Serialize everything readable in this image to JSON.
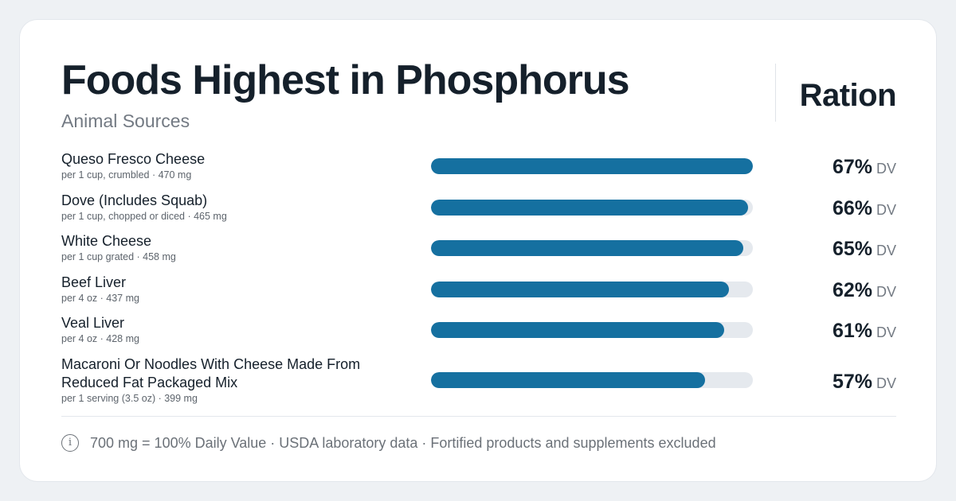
{
  "header": {
    "title": "Foods Highest in Phosphorus",
    "subtitle": "Animal Sources",
    "brand": "Ration"
  },
  "footer": {
    "icon": "info-icon",
    "text": "700 mg = 100% Daily Value · USDA laboratory data · Fortified products and supplements excluded"
  },
  "colors": {
    "bar": "#1570a0",
    "track": "#e5e9ee",
    "text": "#15202b",
    "muted": "#737a83"
  },
  "chart_data": {
    "type": "bar",
    "orientation": "horizontal",
    "title": "Foods Highest in Phosphorus",
    "subtitle": "Animal Sources",
    "value_unit": "% DV",
    "xlim": [
      0,
      67
    ],
    "categories": [
      "Queso Fresco Cheese",
      "Dove (Includes Squab)",
      "White Cheese",
      "Beef Liver",
      "Veal Liver",
      "Macaroni Or Noodles With Cheese Made From Reduced Fat Packaged Mix"
    ],
    "series": [
      {
        "values": [
          67,
          66,
          65,
          62,
          61,
          57
        ]
      }
    ],
    "items": [
      {
        "name": "Queso Fresco Cheese",
        "meta": "per 1 cup, crumbled · 470 mg",
        "value": 67,
        "value_label": "67%",
        "unit": "DV"
      },
      {
        "name": "Dove (Includes Squab)",
        "meta": "per 1 cup, chopped or diced · 465 mg",
        "value": 66,
        "value_label": "66%",
        "unit": "DV"
      },
      {
        "name": "White Cheese",
        "meta": "per 1 cup grated · 458 mg",
        "value": 65,
        "value_label": "65%",
        "unit": "DV"
      },
      {
        "name": "Beef Liver",
        "meta": "per 4 oz · 437 mg",
        "value": 62,
        "value_label": "62%",
        "unit": "DV"
      },
      {
        "name": "Veal Liver",
        "meta": "per 4 oz · 428 mg",
        "value": 61,
        "value_label": "61%",
        "unit": "DV"
      },
      {
        "name": "Macaroni Or Noodles With Cheese Made From Reduced Fat Packaged Mix",
        "meta": "per 1 serving (3.5 oz) · 399 mg",
        "value": 57,
        "value_label": "57%",
        "unit": "DV"
      }
    ]
  }
}
